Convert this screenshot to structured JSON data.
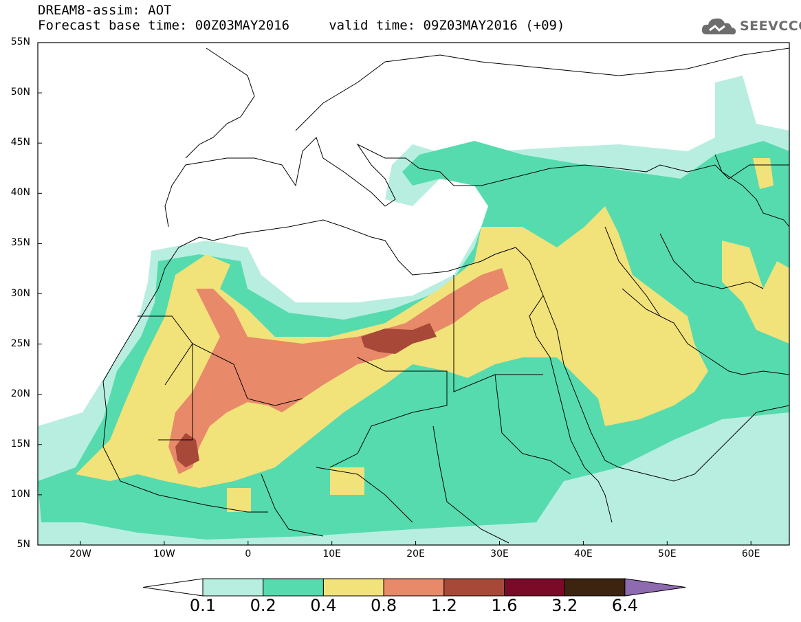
{
  "header": {
    "line1": "DREAM8-assim: AOT",
    "line2": "Forecast base time: 00Z03MAY2016     valid time: 09Z03MAY2016 (+09)"
  },
  "logo": {
    "text": "SEEVCCC",
    "icon": "cloud-icon",
    "color": "#6d6d6d"
  },
  "map": {
    "lat_labels": [
      "55N",
      "50N",
      "45N",
      "40N",
      "35N",
      "30N",
      "25N",
      "20N",
      "15N",
      "10N",
      "5N"
    ],
    "lon_labels": [
      "20W",
      "10W",
      "0",
      "10E",
      "20E",
      "30E",
      "40E",
      "50E",
      "60E"
    ]
  },
  "colorbar": {
    "labels": [
      "0.1",
      "0.2",
      "0.4",
      "0.8",
      "1.2",
      "1.6",
      "3.2",
      "6.4"
    ],
    "colors": [
      "#ffffff",
      "#b8eee0",
      "#55dbae",
      "#f2e27a",
      "#e8896a",
      "#a84838",
      "#7a0a28",
      "#3c2410",
      "#8e6ab0"
    ]
  }
}
